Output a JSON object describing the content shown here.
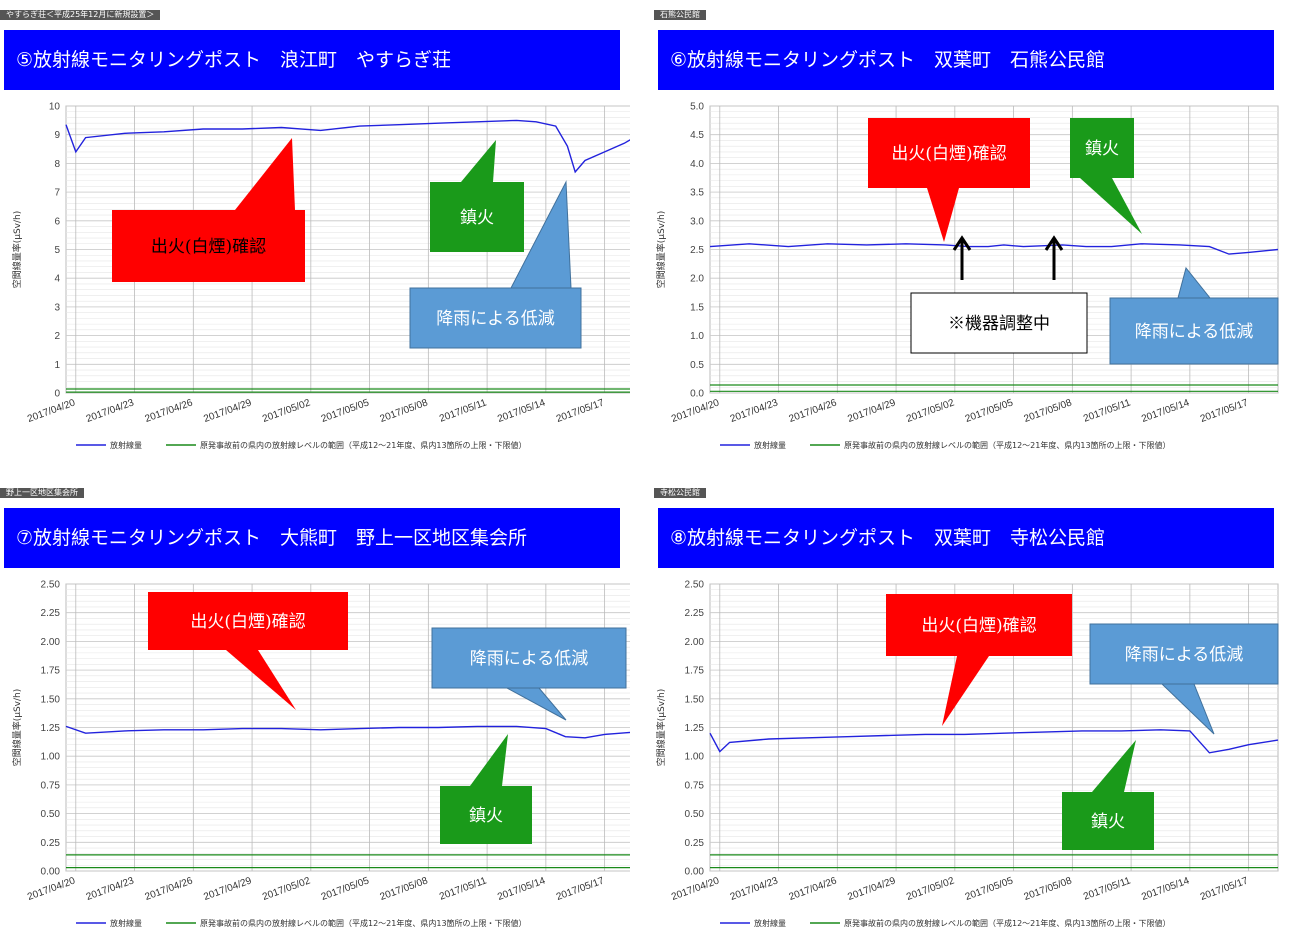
{
  "colors": {
    "header_bg": "#0000ff",
    "radiation_line": "#2222dd",
    "baseline_line": "#1a8a1a",
    "callout_red": "#ff0000",
    "callout_green": "#1a9a1a",
    "callout_blue": "#5b9bd5"
  },
  "x_ticks": [
    "2017/04/20",
    "2017/04/23",
    "2017/04/26",
    "2017/04/29",
    "2017/05/02",
    "2017/05/05",
    "2017/05/08",
    "2017/05/11",
    "2017/05/14",
    "2017/05/17"
  ],
  "legend": {
    "radiation": "放射線量",
    "baseline": "原発事故前の県内の放射線レベルの範囲（平成12～21年度、県内13箇所の上限・下限値）"
  },
  "ylabel": "空間線量率(μSv/h)",
  "chart_data": [
    {
      "type": "line",
      "tag": "やすらぎ荘＜平成25年12月に新規設置＞",
      "title": "⑤放射線モニタリングポスト　浪江町　やすらぎ荘",
      "ylim": [
        0,
        10
      ],
      "y_ticks": [
        "0",
        "1",
        "2",
        "3",
        "4",
        "5",
        "6",
        "7",
        "8",
        "9",
        "10"
      ],
      "x_range": [
        0,
        29
      ],
      "series": [
        {
          "name": "放射線量",
          "points": [
            [
              0,
              9.35
            ],
            [
              0.5,
              8.4
            ],
            [
              1,
              8.9
            ],
            [
              3,
              9.05
            ],
            [
              5,
              9.1
            ],
            [
              7,
              9.2
            ],
            [
              9,
              9.2
            ],
            [
              11,
              9.25
            ],
            [
              13,
              9.15
            ],
            [
              15,
              9.3
            ],
            [
              17,
              9.35
            ],
            [
              19,
              9.4
            ],
            [
              21,
              9.45
            ],
            [
              23,
              9.5
            ],
            [
              24,
              9.45
            ],
            [
              25,
              9.3
            ],
            [
              25.6,
              8.6
            ],
            [
              26,
              7.7
            ],
            [
              26.5,
              8.1
            ],
            [
              27.5,
              8.4
            ],
            [
              28.5,
              8.7
            ],
            [
              29,
              8.9
            ]
          ]
        },
        {
          "name": "baseline_upper",
          "points": [
            [
              0,
              0.14
            ],
            [
              29,
              0.14
            ]
          ]
        },
        {
          "name": "baseline_lower",
          "points": [
            [
              0,
              0.03
            ],
            [
              29,
              0.03
            ]
          ]
        }
      ],
      "annotations": [
        {
          "text": "出火(白煙)確認",
          "color": "#ff0000"
        },
        {
          "text": "鎮火",
          "color": "#1a9a1a"
        },
        {
          "text": "降雨による低減",
          "color": "#5b9bd5"
        }
      ]
    },
    {
      "type": "line",
      "tag": "石熊公民館",
      "title": "⑥放射線モニタリングポスト　双葉町　石熊公民館",
      "ylim": [
        0,
        5
      ],
      "y_ticks": [
        "0.0",
        "0.5",
        "1.0",
        "1.5",
        "2.0",
        "2.5",
        "3.0",
        "3.5",
        "4.0",
        "4.5",
        "5.0"
      ],
      "x_range": [
        0,
        29
      ],
      "series": [
        {
          "name": "放射線量",
          "points": [
            [
              0,
              2.55
            ],
            [
              2,
              2.6
            ],
            [
              4,
              2.55
            ],
            [
              6,
              2.6
            ],
            [
              8,
              2.58
            ],
            [
              10,
              2.6
            ],
            [
              12,
              2.58
            ],
            [
              13.2,
              2.55
            ],
            [
              14.2,
              2.55
            ],
            [
              15,
              2.58
            ],
            [
              16,
              2.55
            ],
            [
              18,
              2.58
            ],
            [
              19.2,
              2.55
            ],
            [
              20.5,
              2.55
            ],
            [
              22,
              2.6
            ],
            [
              24,
              2.58
            ],
            [
              25.5,
              2.55
            ],
            [
              26.5,
              2.42
            ],
            [
              27.5,
              2.45
            ],
            [
              29,
              2.5
            ]
          ]
        },
        {
          "name": "baseline_upper",
          "points": [
            [
              0,
              0.14
            ],
            [
              29,
              0.14
            ]
          ]
        },
        {
          "name": "baseline_lower",
          "points": [
            [
              0,
              0.03
            ],
            [
              29,
              0.03
            ]
          ]
        }
      ],
      "annotations": [
        {
          "text": "出火(白煙)確認",
          "color": "#ff0000"
        },
        {
          "text": "鎮火",
          "color": "#1a9a1a"
        },
        {
          "text": "降雨による低減",
          "color": "#5b9bd5"
        },
        {
          "text": "※機器調整中",
          "color": "#ffffff"
        }
      ]
    },
    {
      "type": "line",
      "tag": "野上一区地区集会所",
      "title": "⑦放射線モニタリングポスト　大熊町　野上一区地区集会所",
      "ylim": [
        0,
        2.5
      ],
      "y_ticks": [
        "0.00",
        "0.25",
        "0.50",
        "0.75",
        "1.00",
        "1.25",
        "1.50",
        "1.75",
        "2.00",
        "2.25",
        "2.50"
      ],
      "x_range": [
        0,
        29
      ],
      "series": [
        {
          "name": "放射線量",
          "points": [
            [
              0,
              1.26
            ],
            [
              1,
              1.2
            ],
            [
              3,
              1.22
            ],
            [
              5,
              1.23
            ],
            [
              7,
              1.23
            ],
            [
              9,
              1.24
            ],
            [
              11,
              1.24
            ],
            [
              13,
              1.23
            ],
            [
              15,
              1.24
            ],
            [
              17,
              1.25
            ],
            [
              19,
              1.25
            ],
            [
              21,
              1.26
            ],
            [
              23,
              1.26
            ],
            [
              24.5,
              1.24
            ],
            [
              25.5,
              1.17
            ],
            [
              26.5,
              1.16
            ],
            [
              27.5,
              1.19
            ],
            [
              29,
              1.21
            ]
          ]
        },
        {
          "name": "baseline_upper",
          "points": [
            [
              0,
              0.14
            ],
            [
              29,
              0.14
            ]
          ]
        },
        {
          "name": "baseline_lower",
          "points": [
            [
              0,
              0.03
            ],
            [
              29,
              0.03
            ]
          ]
        }
      ],
      "annotations": [
        {
          "text": "出火(白煙)確認",
          "color": "#ff0000"
        },
        {
          "text": "降雨による低減",
          "color": "#5b9bd5"
        },
        {
          "text": "鎮火",
          "color": "#1a9a1a"
        }
      ]
    },
    {
      "type": "line",
      "tag": "寺松公民館",
      "title": "⑧放射線モニタリングポスト　双葉町　寺松公民館",
      "ylim": [
        0,
        2.5
      ],
      "y_ticks": [
        "0.00",
        "0.25",
        "0.50",
        "0.75",
        "1.00",
        "1.25",
        "1.50",
        "1.75",
        "2.00",
        "2.25",
        "2.50"
      ],
      "x_range": [
        0,
        29
      ],
      "series": [
        {
          "name": "放射線量",
          "points": [
            [
              0,
              1.2
            ],
            [
              0.5,
              1.04
            ],
            [
              1,
              1.12
            ],
            [
              3,
              1.15
            ],
            [
              5,
              1.16
            ],
            [
              7,
              1.17
            ],
            [
              9,
              1.18
            ],
            [
              11,
              1.19
            ],
            [
              13,
              1.19
            ],
            [
              15,
              1.2
            ],
            [
              17,
              1.21
            ],
            [
              19,
              1.22
            ],
            [
              21,
              1.22
            ],
            [
              23,
              1.23
            ],
            [
              24.5,
              1.22
            ],
            [
              25.5,
              1.03
            ],
            [
              26.5,
              1.06
            ],
            [
              27.5,
              1.1
            ],
            [
              29,
              1.14
            ]
          ]
        },
        {
          "name": "baseline_upper",
          "points": [
            [
              0,
              0.14
            ],
            [
              29,
              0.14
            ]
          ]
        },
        {
          "name": "baseline_lower",
          "points": [
            [
              0,
              0.03
            ],
            [
              29,
              0.03
            ]
          ]
        }
      ],
      "annotations": [
        {
          "text": "出火(白煙)確認",
          "color": "#ff0000"
        },
        {
          "text": "降雨による低減",
          "color": "#5b9bd5"
        },
        {
          "text": "鎮火",
          "color": "#1a9a1a"
        }
      ]
    }
  ]
}
